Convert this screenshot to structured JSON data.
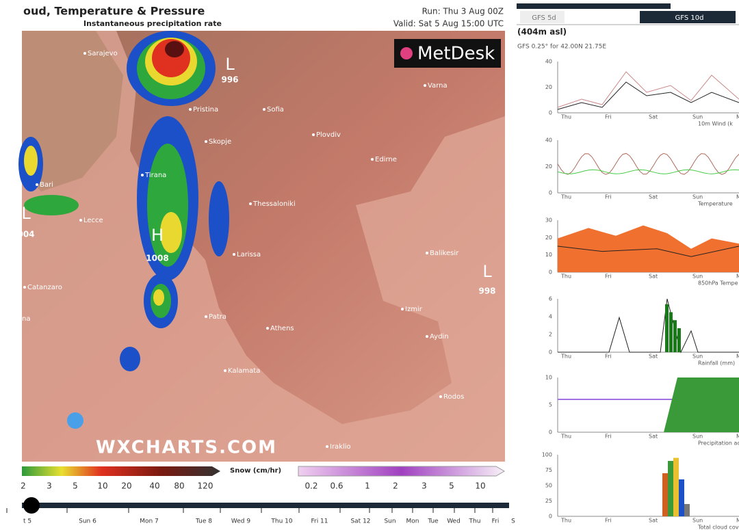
{
  "map": {
    "title": "oud, Temperature & Pressure",
    "subtitle": "Instantaneous precipitation rate",
    "run": "Run: Thu 3 Aug 00Z",
    "valid": "Valid: Sat 5 Aug 15:00 UTC",
    "brand": "MetDesk",
    "watermark": "WXCHARTS.COM",
    "cities": [
      "Sarajevo",
      "Pristina",
      "Sofia",
      "Varna",
      "Plovdiv",
      "Skopje",
      "Edirne",
      "Tirana",
      "Bari",
      "Lecce",
      "Thessaloniki",
      "Larissa",
      "Balikesir",
      "Catanzaro",
      "na",
      "Patra",
      "Athens",
      "Izmir",
      "Aydin",
      "Kalamata",
      "Rodos",
      "Iraklio"
    ],
    "pressure": [
      {
        "letter": "L",
        "value": "996"
      },
      {
        "letter": "H",
        "value": "1008"
      },
      {
        "letter": "L",
        "value": "998"
      },
      {
        "letter": "L",
        "value": "004"
      }
    ]
  },
  "legend": {
    "rain_labels": [
      "2",
      "3",
      "5",
      "10",
      "20",
      "40",
      "80",
      "120"
    ],
    "snow_title": "Snow (cm/hr)",
    "snow_labels": [
      "0.2",
      "0.6",
      "1",
      "2",
      "3",
      "5",
      "10"
    ]
  },
  "timeline": {
    "days": [
      "t 5",
      "Sun 6",
      "Mon 7",
      "Tue 8",
      "Wed 9",
      "Thu 10",
      "Fri 11",
      "Sat 12",
      "Sun",
      "Mon",
      "Tue",
      "Wed",
      "Thu",
      "Fri",
      "S"
    ]
  },
  "meteogram": {
    "tabs": [
      "GFS 5d",
      "GFS 10d"
    ],
    "elevation": "(404m asl)",
    "source": "GFS 0.25° for 42.00N 21.75E",
    "days": [
      "Thu",
      "Fri",
      "Sat",
      "Sun",
      "Mon"
    ],
    "panels": [
      {
        "yticks": [
          0,
          20,
          40
        ],
        "legend": "10m Wind (k"
      },
      {
        "yticks": [
          0,
          20,
          40
        ],
        "legend": "Temperature"
      },
      {
        "yticks": [
          0,
          10,
          20,
          30
        ],
        "legend": "850hPa Tempe"
      },
      {
        "yticks": [
          0,
          2,
          4,
          6
        ],
        "legend": "Rainfall (mm)"
      },
      {
        "yticks": [
          0,
          5,
          10
        ],
        "legend": "Precipitation acc (mm"
      },
      {
        "yticks": [
          0,
          25,
          50,
          75,
          100
        ],
        "legend": "Total cloud cover (%)"
      }
    ]
  }
}
